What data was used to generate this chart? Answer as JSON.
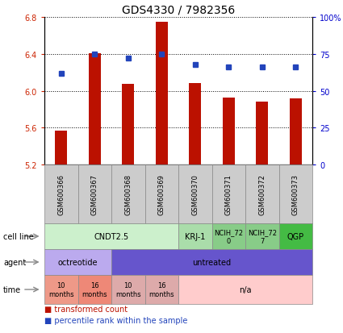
{
  "title": "GDS4330 / 7982356",
  "samples": [
    "GSM600366",
    "GSM600367",
    "GSM600368",
    "GSM600369",
    "GSM600370",
    "GSM600371",
    "GSM600372",
    "GSM600373"
  ],
  "bar_values": [
    5.57,
    6.41,
    6.07,
    6.75,
    6.08,
    5.93,
    5.88,
    5.92
  ],
  "dot_values": [
    62,
    75,
    72,
    75,
    68,
    66,
    66,
    66
  ],
  "ylim_left": [
    5.2,
    6.8
  ],
  "ylim_right": [
    0,
    100
  ],
  "yticks_left": [
    5.2,
    5.6,
    6.0,
    6.4,
    6.8
  ],
  "yticks_right": [
    0,
    25,
    50,
    75,
    100
  ],
  "ytick_labels_right": [
    "0",
    "25",
    "50",
    "75",
    "100%"
  ],
  "bar_color": "#bb1100",
  "dot_color": "#2244bb",
  "bar_bottom": 5.2,
  "cell_line_data": [
    {
      "label": "CNDT2.5",
      "start": 0,
      "end": 4,
      "color": "#ccf0cc"
    },
    {
      "label": "KRJ-1",
      "start": 4,
      "end": 5,
      "color": "#aaddaa"
    },
    {
      "label": "NCIH_72\n0",
      "start": 5,
      "end": 6,
      "color": "#88cc88"
    },
    {
      "label": "NCIH_72\n7",
      "start": 6,
      "end": 7,
      "color": "#88cc88"
    },
    {
      "label": "QGP",
      "start": 7,
      "end": 8,
      "color": "#44bb44"
    }
  ],
  "agent_data": [
    {
      "label": "octreotide",
      "start": 0,
      "end": 2,
      "color": "#bbaaee"
    },
    {
      "label": "untreated",
      "start": 2,
      "end": 8,
      "color": "#6655cc"
    }
  ],
  "time_data": [
    {
      "label": "10\nmonths",
      "start": 0,
      "end": 1,
      "color": "#ee9988"
    },
    {
      "label": "16\nmonths",
      "start": 1,
      "end": 2,
      "color": "#ee8877"
    },
    {
      "label": "10\nmonths",
      "start": 2,
      "end": 3,
      "color": "#ddaaaa"
    },
    {
      "label": "16\nmonths",
      "start": 3,
      "end": 4,
      "color": "#ddaaaa"
    },
    {
      "label": "n/a",
      "start": 4,
      "end": 8,
      "color": "#ffcccc"
    }
  ],
  "legend_items": [
    {
      "label": "transformed count",
      "color": "#bb1100"
    },
    {
      "label": "percentile rank within the sample",
      "color": "#2244bb"
    }
  ],
  "row_labels": [
    "cell line",
    "agent",
    "time"
  ],
  "sample_box_color": "#cccccc",
  "grid_color": "black",
  "left_tick_color": "#cc2200",
  "right_tick_color": "#0000cc"
}
